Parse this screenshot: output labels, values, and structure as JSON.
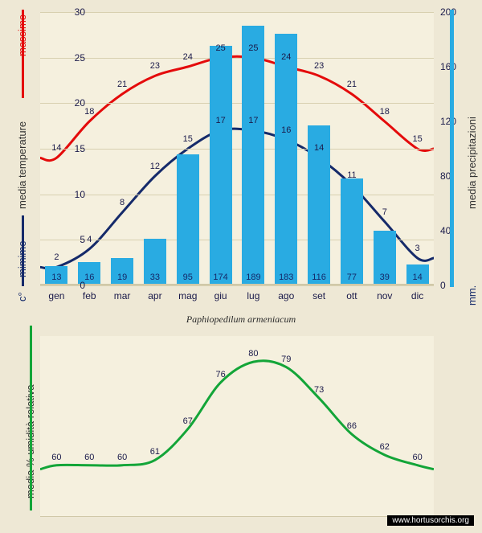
{
  "title": "Paphiopedilum armeniacum",
  "months": [
    "gen",
    "feb",
    "mar",
    "apr",
    "mag",
    "giu",
    "lug",
    "ago",
    "set",
    "ott",
    "nov",
    "dic"
  ],
  "left_axis_label_c": "c°",
  "left_axis_label_min": "mimime",
  "left_axis_label_mid": "media temperature",
  "left_axis_label_max": "massime",
  "right_axis_label_mm": "mm.",
  "right_axis_label_precip": "media precipitazioni",
  "bottom_axis_label": "media % umidità relativa",
  "credit": "www.hortusorchis.org",
  "top_chart": {
    "temp_ylim": [
      0,
      30
    ],
    "temp_ticks": [
      0,
      5,
      10,
      15,
      20,
      25,
      30
    ],
    "precip_ylim": [
      0,
      200
    ],
    "precip_ticks": [
      0,
      40,
      80,
      120,
      160,
      200
    ],
    "bar_color": "#29abe2",
    "precip": [
      13,
      16,
      19,
      33,
      95,
      174,
      189,
      183,
      116,
      77,
      39,
      14
    ],
    "max_temp": [
      14,
      18,
      21,
      23,
      24,
      25,
      25,
      24,
      23,
      21,
      18,
      15
    ],
    "max_color": "#e40b0b",
    "min_temp": [
      2,
      4,
      8,
      12,
      15,
      17,
      17,
      16,
      14,
      11,
      7,
      3
    ],
    "min_color": "#152a6a",
    "bg_color": "#f5f0de",
    "grid_color": "#d8d0b0"
  },
  "bottom_chart": {
    "humidity": [
      60,
      60,
      60,
      61,
      67,
      76,
      80,
      79,
      73,
      66,
      62,
      60
    ],
    "line_color": "#13a538",
    "ylim": [
      50,
      85
    ],
    "bg_color": "#f5f0de"
  }
}
